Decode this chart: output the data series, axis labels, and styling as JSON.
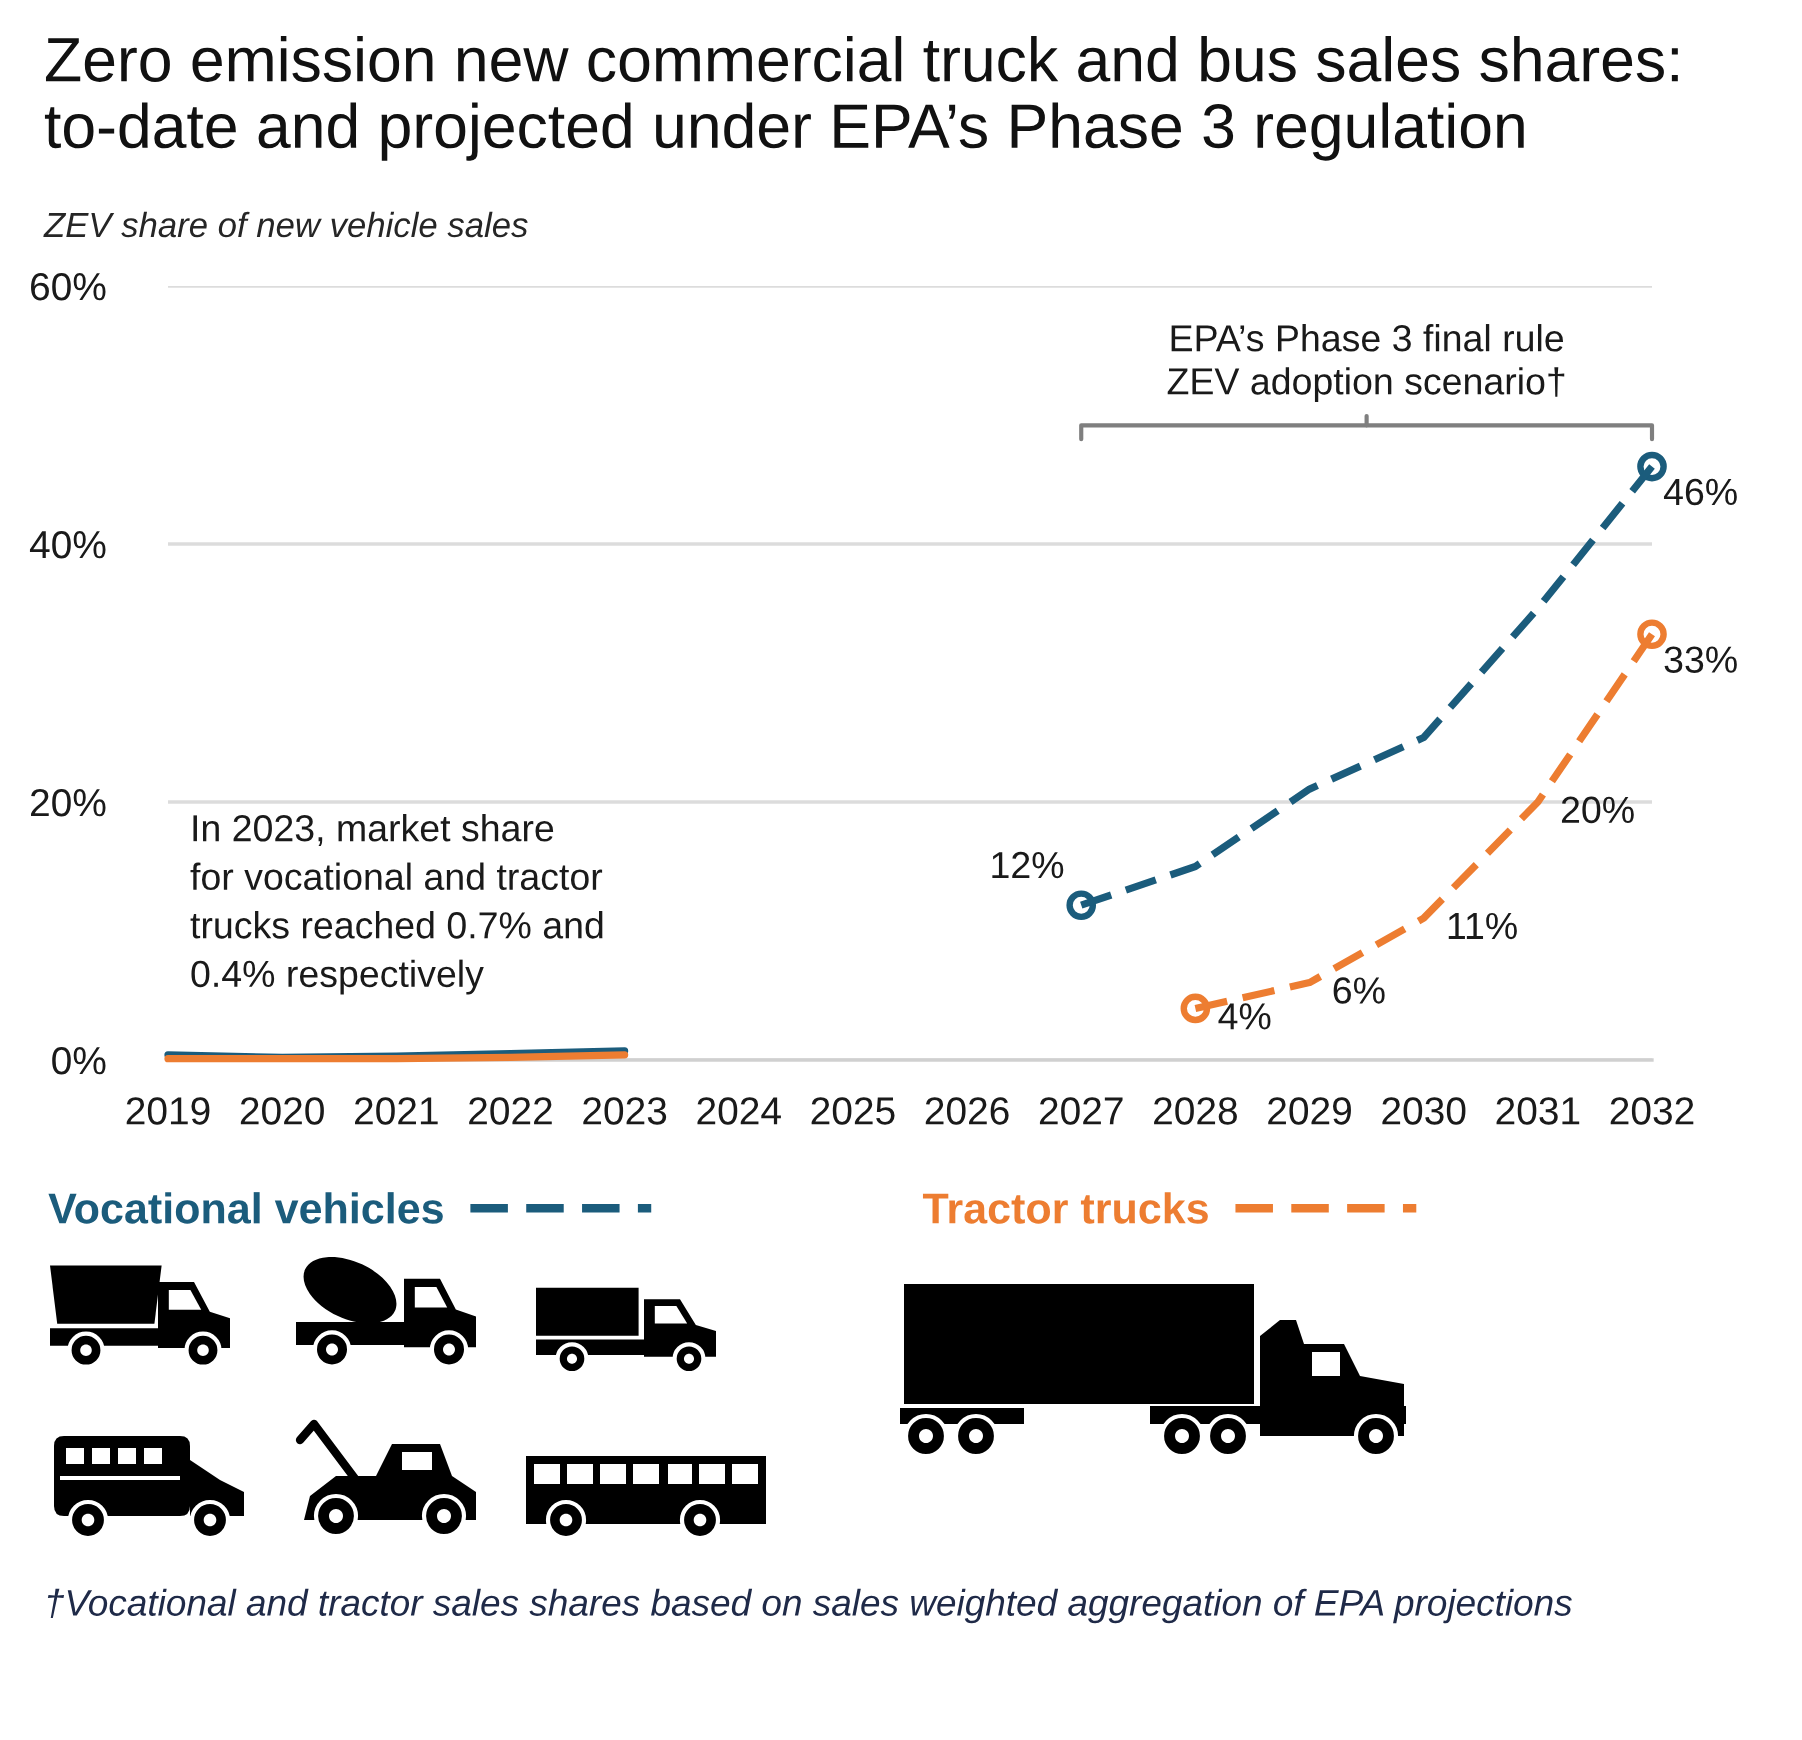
{
  "chart_data": {
    "type": "line",
    "title": "Zero emission new commercial truck and bus sales shares:\nto-date and projected under EPA’s Phase 3 regulation",
    "ylabel": "ZEV share of new vehicle sales",
    "xlim": [
      2019,
      2032
    ],
    "xticks": [
      2019,
      2020,
      2021,
      2022,
      2023,
      2024,
      2025,
      2026,
      2027,
      2028,
      2029,
      2030,
      2031,
      2032
    ],
    "ylim": [
      0,
      60
    ],
    "yticks": [
      {
        "value": 0,
        "label": "0%"
      },
      {
        "value": 20,
        "label": "20%"
      },
      {
        "value": 40,
        "label": "40%"
      },
      {
        "value": 60,
        "label": "60%"
      }
    ],
    "grid": "y",
    "legend": "bottom",
    "series": [
      {
        "color": "#1b5c7c",
        "x": [
          2019,
          2020,
          2021,
          2022,
          2023
        ],
        "values": [
          0.4,
          0.2,
          0.3,
          0.5,
          0.7
        ],
        "line_style": "solid",
        "marker": "none"
      },
      {
        "color": "#ed7d31",
        "x": [
          2019,
          2020,
          2021,
          2022,
          2023
        ],
        "values": [
          0.1,
          0.1,
          0.1,
          0.2,
          0.4
        ],
        "line_style": "solid",
        "marker": "none"
      },
      {
        "name": "Vocational vehicles",
        "color": "#1b5c7c",
        "x": [
          2027,
          2028,
          2029,
          2030,
          2031,
          2032
        ],
        "values": [
          12,
          15,
          21,
          25,
          35,
          46
        ],
        "line_style": "dashed",
        "marker": "none",
        "value_labels": [
          "12%",
          null,
          null,
          null,
          null,
          "46%"
        ]
      },
      {
        "name": "Tractor trucks",
        "color": "#ed7d31",
        "x": [
          2028,
          2029,
          2030,
          2031,
          2032
        ],
        "values": [
          4,
          6,
          11,
          20,
          33
        ],
        "line_style": "dashed",
        "marker": "none",
        "value_labels": [
          "4%",
          "6%",
          "11%",
          "20%",
          "33%"
        ]
      },
      {
        "type": "scatter",
        "color": "#1b5c7c",
        "x": [
          2027,
          2032
        ],
        "values": [
          12,
          46
        ],
        "marker": "circle"
      },
      {
        "type": "scatter",
        "color": "#ed7d31",
        "x": [
          2028,
          2032
        ],
        "values": [
          4,
          33
        ],
        "marker": "circle"
      }
    ],
    "annotations": [
      "EPA’s Phase 3 final rule\nZEV adoption scenario†",
      "In 2023, market share\nfor vocational and tractor\ntrucks reached 0.7% and\n0.4% respectively",
      "†Vocational and tractor sales shares based on sales weighted aggregation of EPA projections"
    ]
  }
}
